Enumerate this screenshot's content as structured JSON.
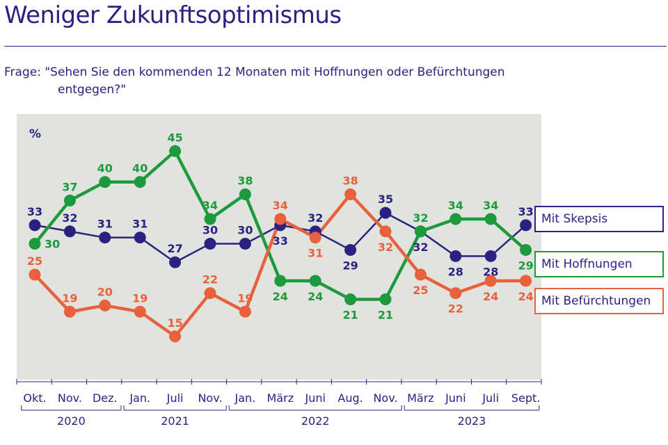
{
  "title": "Weniger Zukunftsoptimismus",
  "question_line1": "Frage: \"Sehen Sie den kommenden 12 Monaten mit Hoffnungen oder Befürchtungen",
  "question_line2": "entgegen?\"",
  "chart_data": {
    "type": "line",
    "ylabel": "%",
    "ylim": [
      8,
      51
    ],
    "grid": false,
    "legend_placement": "right",
    "categories": [
      "Okt.",
      "Nov.",
      "Dez.",
      "Jan.",
      "Juli",
      "Nov.",
      "Jan.",
      "März",
      "Juni",
      "Aug.",
      "Nov.",
      "März",
      "Juni",
      "Juli",
      "Sept."
    ],
    "years": [
      {
        "label": "2020",
        "from": 0,
        "to": 2
      },
      {
        "label": "2021",
        "from": 3,
        "to": 5
      },
      {
        "label": "2022",
        "from": 6,
        "to": 10
      },
      {
        "label": "2023",
        "from": 11,
        "to": 14
      }
    ],
    "series": [
      {
        "name": "Mit Skepsis",
        "color": "#2b2182",
        "values": [
          33,
          32,
          31,
          31,
          27,
          30,
          30,
          33,
          32,
          29,
          35,
          32,
          28,
          28,
          33
        ],
        "label_pos": [
          "above",
          "above",
          "above",
          "above",
          "above",
          "above",
          "above",
          "below",
          "above",
          "below",
          "above",
          "below",
          "below",
          "below",
          "above"
        ]
      },
      {
        "name": "Mit Hoffnungen",
        "color": "#1d9a3d",
        "values": [
          30,
          37,
          40,
          40,
          45,
          34,
          38,
          24,
          24,
          21,
          21,
          32,
          34,
          34,
          29
        ],
        "label_pos": [
          "right",
          "above",
          "above",
          "above",
          "above",
          "above",
          "above",
          "below",
          "below",
          "below",
          "below",
          "above",
          "above",
          "above",
          "below"
        ]
      },
      {
        "name": "Mit Befürchtungen",
        "color": "#e8603c",
        "values": [
          25,
          19,
          20,
          19,
          15,
          22,
          19,
          34,
          31,
          38,
          32,
          25,
          22,
          24,
          24
        ],
        "label_pos": [
          "above",
          "above",
          "above",
          "above",
          "above",
          "above",
          "above",
          "above",
          "below",
          "above",
          "below",
          "below",
          "below",
          "below",
          "below"
        ]
      }
    ]
  }
}
